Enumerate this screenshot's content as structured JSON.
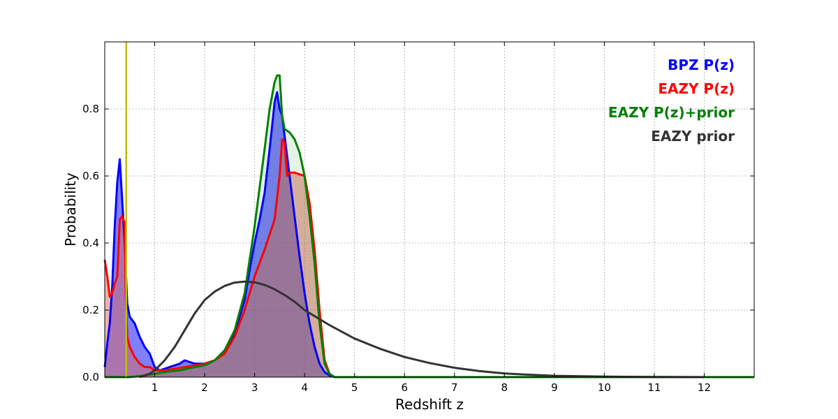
{
  "chart_data": {
    "type": "area",
    "xlabel": "Redshift z",
    "ylabel": "Probability",
    "xlim": [
      0,
      13
    ],
    "ylim": [
      0,
      1.0
    ],
    "x_ticks": [
      1,
      2,
      3,
      4,
      5,
      6,
      7,
      8,
      9,
      10,
      11,
      12
    ],
    "x_tick_labels": [
      "1",
      "2",
      "3",
      "4",
      "5",
      "6",
      "7",
      "8",
      "9",
      "10",
      "11",
      "12"
    ],
    "y_ticks": [
      0.0,
      0.2,
      0.4,
      0.6,
      0.8
    ],
    "y_tick_labels": [
      "0.0",
      "0.2",
      "0.4",
      "0.6",
      "0.8"
    ],
    "grid": true,
    "legend_placement": "top-right",
    "vertical_line": {
      "x": 0.43,
      "color": "#bfbf00"
    },
    "series": [
      {
        "name": "BPZ P(z)",
        "color": "#0000ff",
        "filled": true,
        "fill_color": "#0000ff",
        "fill_opacity": 0.5,
        "x": [
          0,
          0.05,
          0.1,
          0.15,
          0.2,
          0.25,
          0.3,
          0.4,
          0.45,
          0.5,
          0.6,
          0.7,
          0.8,
          0.9,
          1.0,
          1.1,
          1.3,
          1.5,
          1.6,
          1.8,
          2.0,
          2.2,
          2.4,
          2.6,
          2.8,
          2.9,
          3.0,
          3.1,
          3.2,
          3.3,
          3.35,
          3.4,
          3.45,
          3.5,
          3.55,
          3.6,
          3.7,
          3.8,
          3.9,
          4.0,
          4.1,
          4.2,
          4.3,
          4.4,
          4.5,
          4.6,
          4.7,
          5.0,
          12.0,
          13.0
        ],
        "y": [
          0.03,
          0.1,
          0.16,
          0.27,
          0.45,
          0.58,
          0.65,
          0.4,
          0.22,
          0.18,
          0.16,
          0.12,
          0.09,
          0.07,
          0.03,
          0.02,
          0.03,
          0.04,
          0.05,
          0.04,
          0.04,
          0.05,
          0.08,
          0.13,
          0.23,
          0.32,
          0.4,
          0.47,
          0.55,
          0.68,
          0.75,
          0.82,
          0.85,
          0.8,
          0.78,
          0.72,
          0.6,
          0.48,
          0.36,
          0.25,
          0.16,
          0.09,
          0.04,
          0.015,
          0.005,
          0.0,
          0.0,
          0.0,
          0.0,
          0.0
        ]
      },
      {
        "name": "EAZY P(z)",
        "color": "#ff0000",
        "filled": true,
        "fill_color": "#d96a5a",
        "fill_opacity": 0.5,
        "x": [
          0,
          0.05,
          0.1,
          0.15,
          0.2,
          0.25,
          0.3,
          0.35,
          0.4,
          0.42,
          0.45,
          0.5,
          0.6,
          0.7,
          0.8,
          0.9,
          1.0,
          1.2,
          1.4,
          1.6,
          1.8,
          2.0,
          2.2,
          2.4,
          2.6,
          2.8,
          3.0,
          3.2,
          3.4,
          3.5,
          3.55,
          3.6,
          3.65,
          3.7,
          3.8,
          3.9,
          4.0,
          4.1,
          4.2,
          4.3,
          4.4,
          4.5,
          4.6,
          5.0,
          13.0
        ],
        "y": [
          0.35,
          0.3,
          0.24,
          0.25,
          0.28,
          0.3,
          0.47,
          0.48,
          0.46,
          0.25,
          0.12,
          0.09,
          0.06,
          0.04,
          0.03,
          0.03,
          0.02,
          0.02,
          0.025,
          0.03,
          0.035,
          0.04,
          0.05,
          0.07,
          0.12,
          0.2,
          0.3,
          0.38,
          0.47,
          0.6,
          0.71,
          0.7,
          0.6,
          0.61,
          0.61,
          0.605,
          0.6,
          0.52,
          0.38,
          0.2,
          0.05,
          0.01,
          0.0,
          0.0,
          0.0
        ]
      },
      {
        "name": "EAZY P(z)+prior",
        "color": "#008000",
        "filled": true,
        "fill_color": "#008000",
        "fill_opacity": 0.1,
        "x": [
          0,
          0.5,
          0.8,
          1.0,
          1.2,
          1.5,
          1.8,
          2.0,
          2.2,
          2.4,
          2.6,
          2.8,
          3.0,
          3.2,
          3.3,
          3.35,
          3.4,
          3.45,
          3.5,
          3.55,
          3.6,
          3.7,
          3.8,
          3.9,
          4.0,
          4.1,
          4.2,
          4.3,
          4.4,
          4.5,
          4.6,
          5.0,
          13.0
        ],
        "y": [
          0.0,
          0.0,
          0.005,
          0.01,
          0.015,
          0.02,
          0.03,
          0.035,
          0.05,
          0.08,
          0.14,
          0.25,
          0.45,
          0.68,
          0.8,
          0.84,
          0.88,
          0.9,
          0.9,
          0.78,
          0.74,
          0.73,
          0.71,
          0.67,
          0.6,
          0.48,
          0.34,
          0.16,
          0.04,
          0.01,
          0.0,
          0.0,
          0.0
        ]
      },
      {
        "name": "EAZY prior",
        "color": "#333333",
        "filled": false,
        "x": [
          0.7,
          0.9,
          1.0,
          1.2,
          1.4,
          1.6,
          1.8,
          2.0,
          2.2,
          2.4,
          2.6,
          2.8,
          3.0,
          3.2,
          3.4,
          3.6,
          3.8,
          4.0,
          4.5,
          5.0,
          5.5,
          6.0,
          6.5,
          7.0,
          7.5,
          8.0,
          8.5,
          9.0,
          10.0,
          11.0,
          12.0
        ],
        "y": [
          0.0,
          0.01,
          0.02,
          0.05,
          0.09,
          0.14,
          0.19,
          0.23,
          0.255,
          0.272,
          0.282,
          0.285,
          0.283,
          0.275,
          0.262,
          0.245,
          0.225,
          0.2,
          0.155,
          0.115,
          0.085,
          0.06,
          0.042,
          0.028,
          0.018,
          0.011,
          0.007,
          0.004,
          0.0015,
          0.0005,
          0.0
        ]
      }
    ]
  }
}
